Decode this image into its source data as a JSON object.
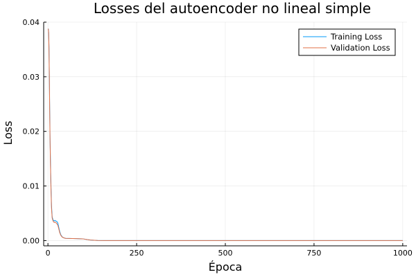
{
  "chart_data": {
    "type": "line",
    "title": "Losses del autoencoder no lineal simple",
    "xlabel": "Época",
    "ylabel": "Loss",
    "xlim": [
      -12,
      1012
    ],
    "ylim": [
      -0.00096,
      0.04
    ],
    "xticks": [
      0,
      250,
      500,
      750,
      1000
    ],
    "xtick_labels": [
      "0",
      "250",
      "500",
      "750",
      "1000"
    ],
    "yticks": [
      0,
      0.01,
      0.02,
      0.03,
      0.04
    ],
    "ytick_labels": [
      "0.00",
      "0.01",
      "0.02",
      "0.03",
      "0.04"
    ],
    "grid": true,
    "legend_position": "top-right",
    "series": [
      {
        "name": "Training Loss",
        "color": "#009AFA",
        "x": [
          1,
          2,
          3,
          4,
          5,
          6,
          8,
          10,
          12,
          15,
          18,
          20,
          22,
          25,
          28,
          30,
          33,
          36,
          40,
          45,
          50,
          60,
          80,
          100,
          110,
          120,
          140,
          160,
          200,
          300,
          400,
          500,
          600,
          700,
          800,
          900,
          1000
        ],
        "y": [
          0.0388,
          0.0382,
          0.0355,
          0.0305,
          0.024,
          0.0185,
          0.0115,
          0.0065,
          0.0043,
          0.0037,
          0.0036,
          0.0037,
          0.0036,
          0.0035,
          0.0032,
          0.0026,
          0.0017,
          0.0011,
          0.0007,
          0.0005,
          0.0004,
          0.00038,
          0.00035,
          0.0003,
          0.0002,
          0.0001,
          3e-05,
          1e-05,
          1e-05,
          1e-05,
          1e-05,
          1e-05,
          1e-05,
          1e-05,
          1e-05,
          1e-05,
          1e-05
        ]
      },
      {
        "name": "Validation Loss",
        "color": "#E26F46",
        "x": [
          1,
          2,
          3,
          4,
          5,
          6,
          8,
          10,
          12,
          15,
          18,
          20,
          22,
          25,
          28,
          30,
          33,
          36,
          40,
          45,
          50,
          60,
          80,
          100,
          110,
          120,
          140,
          160,
          200,
          300,
          400,
          500,
          600,
          700,
          800,
          900,
          1000
        ],
        "y": [
          0.0388,
          0.0381,
          0.0352,
          0.0301,
          0.0236,
          0.018,
          0.011,
          0.006,
          0.0041,
          0.0035,
          0.0033,
          0.0034,
          0.0033,
          0.0031,
          0.0028,
          0.0023,
          0.0015,
          0.001,
          0.00065,
          0.0005,
          0.0004,
          0.00038,
          0.00035,
          0.0003,
          0.0002,
          0.0001,
          3e-05,
          1e-05,
          1e-05,
          1e-05,
          1e-05,
          1e-05,
          1e-05,
          1e-05,
          1e-05,
          1e-05,
          1e-05
        ]
      }
    ]
  }
}
